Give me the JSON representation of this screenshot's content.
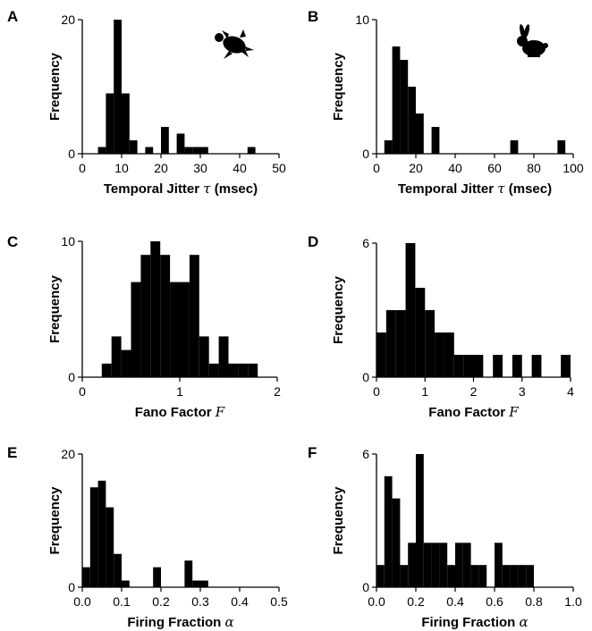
{
  "chart_data": [
    {
      "panel": "A",
      "type": "bar",
      "icon": "turtle-icon",
      "xlabel": "Temporal Jitter",
      "xsymbol": "τ",
      "xunit": "(msec)",
      "ylabel": "Frequency",
      "xlim": [
        0,
        50
      ],
      "ylim": [
        0,
        20
      ],
      "xticks": [
        "0",
        "10",
        "20",
        "30",
        "40",
        "50"
      ],
      "yticks": [
        "0",
        "20"
      ],
      "bin_width": 2,
      "bins": [
        [
          4,
          1
        ],
        [
          6,
          9
        ],
        [
          8,
          20
        ],
        [
          10,
          9
        ],
        [
          12,
          2
        ],
        [
          16,
          1
        ],
        [
          20,
          4
        ],
        [
          24,
          3
        ],
        [
          26,
          1
        ],
        [
          28,
          1
        ],
        [
          30,
          1
        ],
        [
          42,
          1
        ]
      ]
    },
    {
      "panel": "B",
      "type": "bar",
      "icon": "rabbit-icon",
      "xlabel": "Temporal Jitter",
      "xsymbol": "τ",
      "xunit": "(msec)",
      "ylabel": "Frequency",
      "xlim": [
        0,
        100
      ],
      "ylim": [
        0,
        10
      ],
      "xticks": [
        "0",
        "20",
        "40",
        "60",
        "80",
        "100"
      ],
      "yticks": [
        "0",
        "10"
      ],
      "bin_width": 4,
      "bins": [
        [
          4,
          1
        ],
        [
          8,
          8
        ],
        [
          12,
          7
        ],
        [
          16,
          5
        ],
        [
          20,
          3
        ],
        [
          28,
          2
        ],
        [
          68,
          1
        ],
        [
          92,
          1
        ]
      ]
    },
    {
      "panel": "C",
      "type": "bar",
      "xlabel": "Fano Factor",
      "xsymbol": "F",
      "xunit": "",
      "ylabel": "Frequency",
      "xlim": [
        0,
        2
      ],
      "ylim": [
        0,
        10
      ],
      "xticks": [
        "0",
        "1",
        "2"
      ],
      "yticks": [
        "0",
        "10"
      ],
      "bin_width": 0.1,
      "bins": [
        [
          0.2,
          1
        ],
        [
          0.3,
          3
        ],
        [
          0.4,
          2
        ],
        [
          0.5,
          7
        ],
        [
          0.6,
          9
        ],
        [
          0.7,
          10
        ],
        [
          0.8,
          9
        ],
        [
          0.9,
          7
        ],
        [
          1.0,
          7
        ],
        [
          1.1,
          9
        ],
        [
          1.2,
          3
        ],
        [
          1.3,
          1
        ],
        [
          1.4,
          3
        ],
        [
          1.5,
          1
        ],
        [
          1.6,
          1
        ],
        [
          1.7,
          1
        ]
      ]
    },
    {
      "panel": "D",
      "type": "bar",
      "xlabel": "Fano Factor",
      "xsymbol": "F",
      "xunit": "",
      "ylabel": "Frequency",
      "xlim": [
        0,
        4
      ],
      "ylim": [
        0,
        6
      ],
      "xticks": [
        "0",
        "1",
        "2",
        "3",
        "4"
      ],
      "yticks": [
        "0",
        "6"
      ],
      "bin_width": 0.2,
      "bins": [
        [
          0.0,
          2
        ],
        [
          0.2,
          3
        ],
        [
          0.4,
          3
        ],
        [
          0.6,
          6
        ],
        [
          0.8,
          4
        ],
        [
          1.0,
          3
        ],
        [
          1.2,
          2
        ],
        [
          1.4,
          2
        ],
        [
          1.6,
          1
        ],
        [
          1.8,
          1
        ],
        [
          2.0,
          1
        ],
        [
          2.4,
          1
        ],
        [
          2.8,
          1
        ],
        [
          3.2,
          1
        ],
        [
          3.8,
          1
        ]
      ]
    },
    {
      "panel": "E",
      "type": "bar",
      "xlabel": "Firing Fraction",
      "xsymbol": "α",
      "xunit": "",
      "ylabel": "Frequency",
      "xlim": [
        0,
        0.5
      ],
      "ylim": [
        0,
        20
      ],
      "xticks": [
        "0.0",
        "0.1",
        "0.2",
        "0.3",
        "0.4",
        "0.5"
      ],
      "yticks": [
        "0",
        "20"
      ],
      "bin_width": 0.02,
      "bins": [
        [
          0.0,
          3
        ],
        [
          0.02,
          15
        ],
        [
          0.04,
          16
        ],
        [
          0.06,
          12
        ],
        [
          0.08,
          5
        ],
        [
          0.1,
          1
        ],
        [
          0.18,
          3
        ],
        [
          0.26,
          4
        ],
        [
          0.28,
          1
        ],
        [
          0.3,
          1
        ]
      ]
    },
    {
      "panel": "F",
      "type": "bar",
      "xlabel": "Firing Fraction",
      "xsymbol": "α",
      "xunit": "",
      "ylabel": "Frequency",
      "xlim": [
        0,
        1.0
      ],
      "ylim": [
        0,
        6
      ],
      "xticks": [
        "0.0",
        "0.2",
        "0.4",
        "0.6",
        "0.8",
        "1.0"
      ],
      "yticks": [
        "0",
        "6"
      ],
      "bin_width": 0.04,
      "bins": [
        [
          0.0,
          1
        ],
        [
          0.04,
          5
        ],
        [
          0.08,
          4
        ],
        [
          0.12,
          1
        ],
        [
          0.16,
          2
        ],
        [
          0.2,
          6
        ],
        [
          0.24,
          2
        ],
        [
          0.28,
          2
        ],
        [
          0.32,
          2
        ],
        [
          0.36,
          1
        ],
        [
          0.4,
          2
        ],
        [
          0.44,
          2
        ],
        [
          0.48,
          1
        ],
        [
          0.52,
          1
        ],
        [
          0.56,
          0
        ],
        [
          0.6,
          2
        ],
        [
          0.64,
          1
        ],
        [
          0.68,
          1
        ],
        [
          0.72,
          1
        ],
        [
          0.76,
          1
        ]
      ]
    }
  ]
}
